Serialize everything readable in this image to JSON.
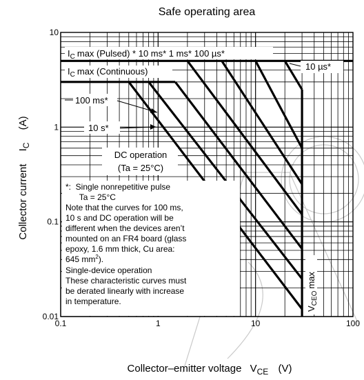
{
  "chart_data": {
    "type": "line",
    "title": "Safe operating area",
    "xscale": "log",
    "yscale": "log",
    "xlim": [
      0.1,
      100
    ],
    "ylim": [
      0.01,
      10
    ],
    "x_ticks": [
      "0.1",
      "1",
      "10",
      "100"
    ],
    "y_ticks": [
      "0.01",
      "0.1",
      "1",
      "10"
    ],
    "xlabel": {
      "main": "Collector–emitter voltage",
      "symbol": "V",
      "sub": "CE",
      "unit": "(V)"
    },
    "ylabel": {
      "main": "Collector current",
      "symbol": "I",
      "sub": "C",
      "unit": "(A)"
    },
    "grid": true,
    "series": [
      {
        "name": "I C max (Pulsed)",
        "points": [
          [
            0.1,
            5
          ],
          [
            100,
            5
          ]
        ]
      },
      {
        "name": "I C max (Continuous)",
        "points": [
          [
            0.1,
            3
          ],
          [
            1.5,
            3
          ]
        ]
      },
      {
        "name": "10 µs*",
        "points": [
          [
            20,
            5
          ],
          [
            30,
            2.5
          ]
        ]
      },
      {
        "name": "100 µs*",
        "points": [
          [
            10,
            5
          ],
          [
            30,
            0.6
          ]
        ]
      },
      {
        "name": "1 ms*",
        "points": [
          [
            4.5,
            5
          ],
          [
            30,
            0.25
          ]
        ]
      },
      {
        "name": "10 ms*",
        "points": [
          [
            2,
            5
          ],
          [
            30,
            0.12
          ]
        ]
      },
      {
        "name": "100 ms*",
        "points": [
          [
            1.5,
            3
          ],
          [
            30,
            0.052
          ]
        ]
      },
      {
        "name": "10 s*",
        "points": [
          [
            0.8,
            3
          ],
          [
            30,
            0.025
          ]
        ]
      },
      {
        "name": "DC operation",
        "points": [
          [
            0.5,
            3
          ],
          [
            30,
            0.012
          ]
        ]
      },
      {
        "name": "VCEO max",
        "points": [
          [
            30,
            0.01
          ],
          [
            30,
            2.5
          ]
        ]
      }
    ],
    "annotations": {
      "pulsed": {
        "text": "max (Pulsed) * 10 ms* 1 ms* 100 µs*",
        "symbol": "I",
        "sub": "C"
      },
      "continuous": {
        "text": "max (Continuous)",
        "symbol": "I",
        "sub": "C"
      },
      "us10": "10 µs*",
      "ms100": "100 ms*",
      "s10": "10 s*",
      "dc": [
        "DC operation",
        "(Ta = 25°C)"
      ],
      "vceo": {
        "symbol": "V",
        "sub": "CEO",
        "text": "max"
      },
      "notes": [
        "*:  Single nonrepetitive pulse",
        "      Ta = 25°C",
        "Note that the curves for 100 ms,",
        "10 s and DC operation will be",
        "different when the devices aren’t",
        "mounted on an FR4 board (glass",
        "epoxy, 1.6 mm thick, Cu area:",
        "645 mm",
        "2",
        ").",
        "Single-device operation",
        "These characteristic curves must",
        "be derated linearly with increase",
        "in temperature."
      ]
    }
  }
}
